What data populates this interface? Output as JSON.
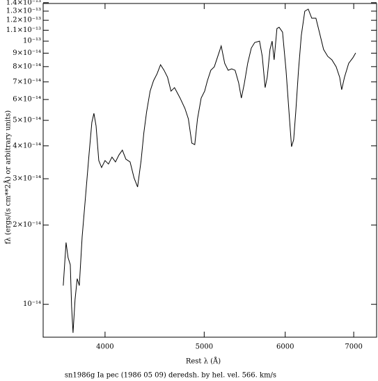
{
  "chart_data": {
    "type": "line",
    "caption": "sn1986g Ia pec (1986 05 09) deredsh. by hel. vel.   566. km/s",
    "xlabel": "Rest λ (Å)",
    "ylabel": "fλ (ergs/(s cm**2Å) or arbitrary units)",
    "xscale": "log",
    "yscale": "log",
    "color": "#000000",
    "xlim": [
      3480,
      7370
    ],
    "ylim": [
      7.5e-15,
      1.39e-13
    ],
    "xticks": [
      4000,
      5000,
      6000,
      7000
    ],
    "yticks": [
      {
        "value": 1e-14,
        "label": "10⁻¹⁴"
      },
      {
        "value": 2e-14,
        "label": "2×10⁻¹⁴"
      },
      {
        "value": 3e-14,
        "label": "3×10⁻¹⁴"
      },
      {
        "value": 4e-14,
        "label": "4×10⁻¹⁴"
      },
      {
        "value": 5e-14,
        "label": "5×10⁻¹⁴"
      },
      {
        "value": 6e-14,
        "label": "6×10⁻¹⁴"
      },
      {
        "value": 7e-14,
        "label": "7×10⁻¹⁴"
      },
      {
        "value": 8e-14,
        "label": "8×10⁻¹⁴"
      },
      {
        "value": 9e-14,
        "label": "9×10⁻¹⁴"
      },
      {
        "value": 1e-13,
        "label": "10⁻¹³"
      },
      {
        "value": 1.1e-13,
        "label": "1.1×10⁻¹³"
      },
      {
        "value": 1.2e-13,
        "label": "1.2×10⁻¹³"
      },
      {
        "value": 1.3e-13,
        "label": "1.3×10⁻¹³"
      },
      {
        "value": 1.4e-13,
        "label": "1.4×10⁻¹³"
      }
    ],
    "x": [
      3641,
      3664,
      3681,
      3699,
      3710,
      3722,
      3739,
      3757,
      3775,
      3799,
      3829,
      3859,
      3883,
      3901,
      3920,
      3944,
      3969,
      4000,
      4031,
      4063,
      4095,
      4127,
      4159,
      4192,
      4232,
      4270,
      4304,
      4338,
      4365,
      4392,
      4427,
      4461,
      4497,
      4532,
      4568,
      4604,
      4640,
      4677,
      4736,
      4788,
      4825,
      4863,
      4895,
      4925,
      4966,
      5005,
      5036,
      5075,
      5115,
      5155,
      5195,
      5236,
      5277,
      5319,
      5360,
      5403,
      5436,
      5471,
      5514,
      5559,
      5602,
      5663,
      5698,
      5735,
      5762,
      5798,
      5826,
      5852,
      5889,
      5918,
      5964,
      6011,
      6058,
      6086,
      6115,
      6144,
      6182,
      6221,
      6270,
      6319,
      6369,
      6429,
      6479,
      6541,
      6603,
      6665,
      6729,
      6782,
      6813,
      6856,
      6921,
      6987,
      7031
    ],
    "values": [
      1.178e-14,
      1.717e-14,
      1.502e-14,
      1.414e-14,
      9.82e-15,
      7.79e-15,
      1.043e-14,
      1.252e-14,
      1.178e-14,
      1.803e-14,
      2.596e-14,
      3.738e-14,
      4.913e-14,
      5.316e-14,
      4.765e-14,
      3.517e-14,
      3.31e-14,
      3.517e-14,
      3.412e-14,
      3.626e-14,
      3.474e-14,
      3.693e-14,
      3.853e-14,
      3.56e-14,
      3.474e-14,
      3.021e-14,
      2.792e-14,
      3.517e-14,
      4.484e-14,
      5.381e-14,
      6.457e-14,
      7.072e-14,
      7.516e-14,
      8.134e-14,
      7.749e-14,
      7.291e-14,
      6.457e-14,
      6.656e-14,
      6.075e-14,
      5.548e-14,
      5.064e-14,
      4.094e-14,
      4.045e-14,
      5.064e-14,
      6.075e-14,
      6.457e-14,
      7.072e-14,
      7.749e-14,
      7.987e-14,
      8.75e-14,
      9.584e-14,
      8.234e-14,
      7.749e-14,
      7.843e-14,
      7.749e-14,
      6.945e-14,
      6.075e-14,
      6.861e-14,
      8.234e-14,
      9.41e-14,
      9.879e-14,
      1e-13,
      8.75e-14,
      6.656e-14,
      7.291e-14,
      9.296e-14,
      1e-13,
      8.487e-14,
      1.116e-13,
      1.129e-13,
      1.082e-13,
      7.749e-14,
      5.064e-14,
      3.971e-14,
      4.22e-14,
      5.381e-14,
      7.749e-14,
      1.05e-13,
      1.299e-13,
      1.323e-13,
      1.222e-13,
      1.222e-13,
      1.082e-13,
      9.296e-14,
      8.75e-14,
      8.487e-14,
      7.987e-14,
      7.291e-14,
      6.537e-14,
      7.291e-14,
      8.234e-14,
      8.644e-14,
      9.019e-14
    ]
  }
}
